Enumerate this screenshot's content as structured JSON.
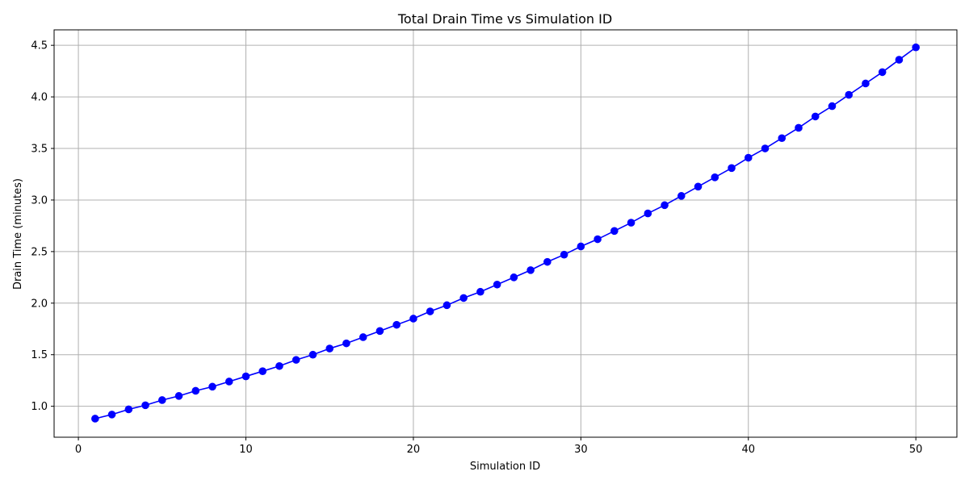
{
  "chart_data": {
    "type": "line",
    "title": "Total Drain Time vs Simulation ID",
    "xlabel": "Simulation ID",
    "ylabel": "Drain Time (minutes)",
    "xlim": [
      -1.45,
      52.45
    ],
    "ylim": [
      0.7,
      4.65
    ],
    "xticks": [
      0,
      10,
      20,
      30,
      40,
      50
    ],
    "xtick_labels": [
      "0",
      "10",
      "20",
      "30",
      "40",
      "50"
    ],
    "yticks": [
      1.0,
      1.5,
      2.0,
      2.5,
      3.0,
      3.5,
      4.0,
      4.5
    ],
    "ytick_labels": [
      "1.0",
      "1.5",
      "2.0",
      "2.5",
      "3.0",
      "3.5",
      "4.0",
      "4.5"
    ],
    "grid": true,
    "line_color": "#0000ff",
    "marker": "circle",
    "x": [
      1,
      2,
      3,
      4,
      5,
      6,
      7,
      8,
      9,
      10,
      11,
      12,
      13,
      14,
      15,
      16,
      17,
      18,
      19,
      20,
      21,
      22,
      23,
      24,
      25,
      26,
      27,
      28,
      29,
      30,
      31,
      32,
      33,
      34,
      35,
      36,
      37,
      38,
      39,
      40,
      41,
      42,
      43,
      44,
      45,
      46,
      47,
      48,
      49,
      50
    ],
    "y": [
      0.88,
      0.92,
      0.97,
      1.01,
      1.06,
      1.1,
      1.15,
      1.19,
      1.24,
      1.29,
      1.34,
      1.39,
      1.45,
      1.5,
      1.56,
      1.61,
      1.67,
      1.73,
      1.79,
      1.85,
      1.92,
      1.98,
      2.05,
      2.11,
      2.18,
      2.25,
      2.32,
      2.4,
      2.47,
      2.55,
      2.62,
      2.7,
      2.78,
      2.87,
      2.95,
      3.04,
      3.13,
      3.22,
      3.31,
      3.41,
      3.5,
      3.6,
      3.7,
      3.81,
      3.91,
      4.02,
      4.13,
      4.24,
      4.36,
      4.48
    ]
  }
}
